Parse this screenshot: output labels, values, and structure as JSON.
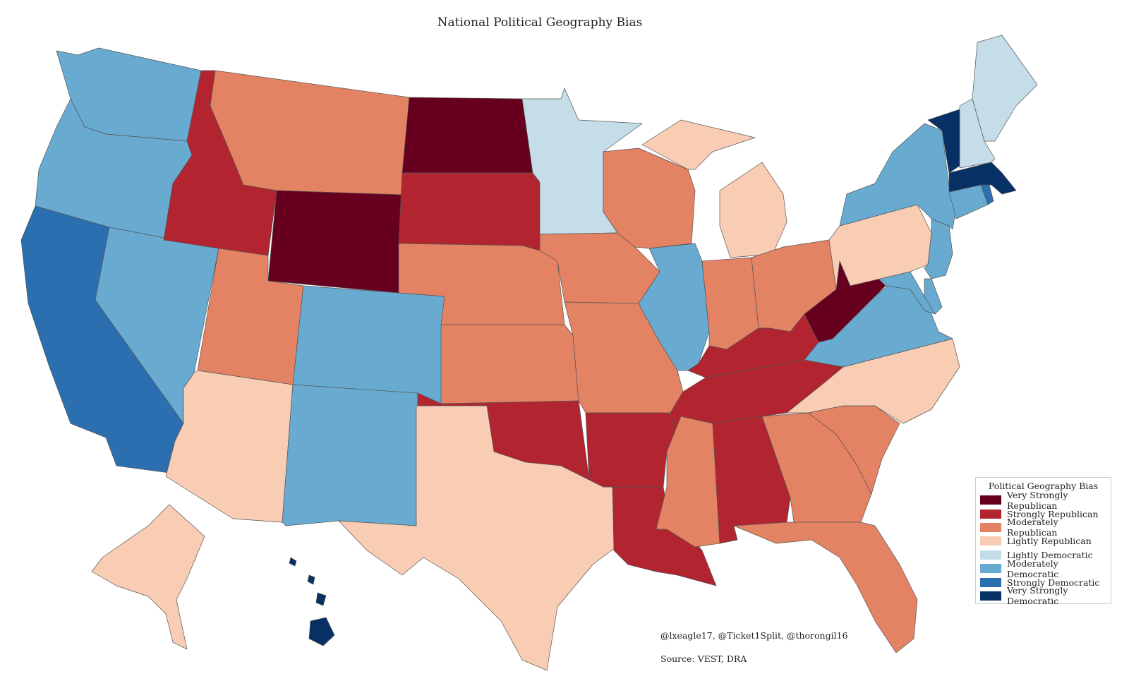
{
  "title": "National Political Geography Bias",
  "legend": {
    "title": "Political Geography Bias",
    "items": [
      {
        "label": "Very Strongly Republican",
        "color": "#67001f"
      },
      {
        "label": "Strongly Republican",
        "color": "#b2242f"
      },
      {
        "label": "Moderately Republican",
        "color": "#e48264"
      },
      {
        "label": "Lightly Republican",
        "color": "#f9ccb4"
      },
      {
        "label": "Lightly Democratic",
        "color": "#c4dde9"
      },
      {
        "label": "Moderately Democratic",
        "color": "#68aad0"
      },
      {
        "label": "Strongly Democratic",
        "color": "#2b6fb1"
      },
      {
        "label": "Very Strongly Democratic",
        "color": "#073064"
      }
    ]
  },
  "credits": "@lxeagle17, @Ticket1Split, @thorongil16",
  "source": "Source: VEST, DRA",
  "states": {
    "WA": "Moderately Democratic",
    "OR": "Moderately Democratic",
    "CA": "Strongly Democratic",
    "NV": "Moderately Democratic",
    "ID": "Strongly Republican",
    "MT": "Moderately Republican",
    "WY": "Very Strongly Republican",
    "UT": "Moderately Republican",
    "AZ": "Lightly Republican",
    "CO": "Moderately Democratic",
    "NM": "Moderately Democratic",
    "ND": "Very Strongly Republican",
    "SD": "Strongly Republican",
    "NE": "Moderately Republican",
    "KS": "Moderately Republican",
    "OK": "Strongly Republican",
    "TX": "Lightly Republican",
    "MN": "Lightly Democratic",
    "IA": "Moderately Republican",
    "MO": "Moderately Republican",
    "AR": "Strongly Republican",
    "LA": "Strongly Republican",
    "WI": "Moderately Republican",
    "IL": "Moderately Democratic",
    "MI": "Lightly Republican",
    "IN": "Moderately Republican",
    "OH": "Moderately Republican",
    "KY": "Strongly Republican",
    "TN": "Strongly Republican",
    "MS": "Moderately Republican",
    "AL": "Strongly Republican",
    "GA": "Moderately Republican",
    "FL": "Moderately Republican",
    "SC": "Moderately Republican",
    "NC": "Lightly Republican",
    "VA": "Moderately Democratic",
    "WV": "Very Strongly Republican",
    "PA": "Lightly Republican",
    "NY": "Moderately Democratic",
    "NJ": "Moderately Democratic",
    "DE": "Moderately Democratic",
    "MD": "Moderately Democratic",
    "CT": "Moderately Democratic",
    "RI": "Strongly Democratic",
    "MA": "Very Strongly Democratic",
    "VT": "Very Strongly Democratic",
    "NH": "Lightly Democratic",
    "ME": "Lightly Democratic",
    "AK": "Lightly Republican",
    "HI": "Very Strongly Democratic"
  }
}
